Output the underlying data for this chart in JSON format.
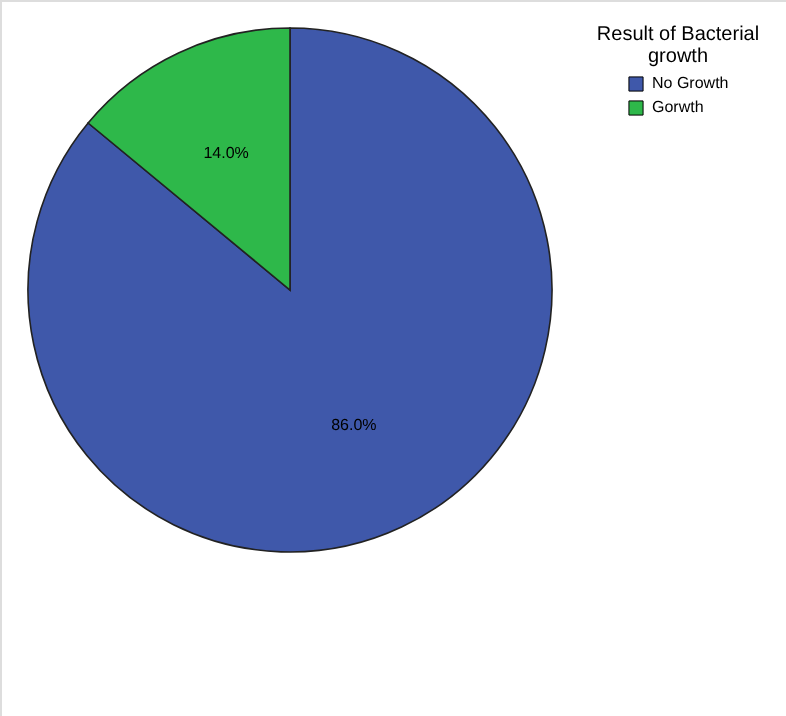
{
  "chart_data": {
    "type": "pie",
    "legend_title": "Result of Bacterial growth",
    "categories": [
      "No Growth",
      "Gorwth"
    ],
    "values": [
      86.0,
      14.0
    ],
    "colors": [
      "#3f58aa",
      "#2eb84a"
    ],
    "value_labels": [
      "86.0%",
      "14.0%"
    ],
    "legend": "top right"
  }
}
